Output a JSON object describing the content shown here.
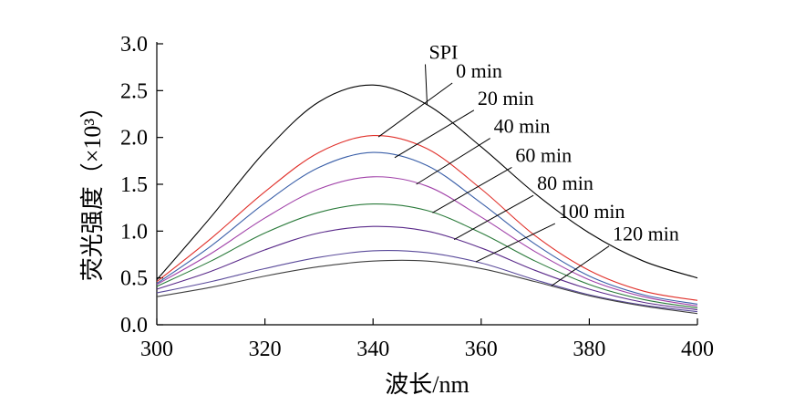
{
  "chart_data": {
    "type": "line",
    "title": "",
    "xlabel": "波长/nm",
    "ylabel": "荧光强度（×10³）",
    "xlim": [
      300,
      400
    ],
    "ylim": [
      0.0,
      3.0
    ],
    "xticks": [
      "300",
      "320",
      "340",
      "360",
      "380",
      "400"
    ],
    "yticks": [
      "0.0",
      "0.5",
      "1.0",
      "1.5",
      "2.0",
      "2.5",
      "3.0"
    ],
    "grid": false,
    "legend": "none",
    "x": [
      300,
      310,
      320,
      330,
      340,
      350,
      360,
      370,
      380,
      390,
      400
    ],
    "series": [
      {
        "name": "SPI",
        "color": "#000000",
        "label_x": 350,
        "values": [
          0.48,
          1.15,
          1.85,
          2.38,
          2.56,
          2.35,
          1.9,
          1.4,
          0.98,
          0.68,
          0.5
        ]
      },
      {
        "name": "0 min",
        "color": "#e0302a",
        "label_x": 341,
        "values": [
          0.46,
          0.92,
          1.42,
          1.84,
          2.02,
          1.88,
          1.45,
          0.95,
          0.58,
          0.36,
          0.26
        ]
      },
      {
        "name": "20 min",
        "color": "#3a5fa8",
        "label_x": 344,
        "values": [
          0.44,
          0.84,
          1.3,
          1.68,
          1.84,
          1.7,
          1.3,
          0.86,
          0.52,
          0.32,
          0.22
        ]
      },
      {
        "name": "40 min",
        "color": "#a040a8",
        "label_x": 348,
        "values": [
          0.43,
          0.76,
          1.14,
          1.45,
          1.58,
          1.48,
          1.15,
          0.78,
          0.48,
          0.3,
          0.2
        ]
      },
      {
        "name": "60 min",
        "color": "#2a7a3a",
        "label_x": 351,
        "values": [
          0.41,
          0.68,
          0.98,
          1.2,
          1.29,
          1.22,
          0.98,
          0.68,
          0.43,
          0.27,
          0.18
        ]
      },
      {
        "name": "80 min",
        "color": "#5a2a8a",
        "label_x": 355,
        "values": [
          0.38,
          0.57,
          0.8,
          0.98,
          1.05,
          1.0,
          0.82,
          0.58,
          0.38,
          0.24,
          0.16
        ]
      },
      {
        "name": "100 min",
        "color": "#5a4a9a",
        "label_x": 359,
        "values": [
          0.34,
          0.46,
          0.6,
          0.72,
          0.79,
          0.77,
          0.66,
          0.48,
          0.32,
          0.21,
          0.14
        ]
      },
      {
        "name": "120 min",
        "color": "#404040",
        "label_x": 373,
        "values": [
          0.3,
          0.4,
          0.52,
          0.62,
          0.68,
          0.68,
          0.6,
          0.46,
          0.31,
          0.2,
          0.12
        ]
      }
    ],
    "annotations": [
      {
        "text": "SPI",
        "x": 350,
        "y": 2.82
      },
      {
        "text": "0 min",
        "x": 355,
        "y": 2.62
      },
      {
        "text": "20 min",
        "x": 359,
        "y": 2.33
      },
      {
        "text": "40 min",
        "x": 362,
        "y": 2.03
      },
      {
        "text": "60 min",
        "x": 366,
        "y": 1.72
      },
      {
        "text": "80 min",
        "x": 370,
        "y": 1.42
      },
      {
        "text": "100 min",
        "x": 374,
        "y": 1.12
      },
      {
        "text": "120 min",
        "x": 384,
        "y": 0.88
      }
    ]
  }
}
